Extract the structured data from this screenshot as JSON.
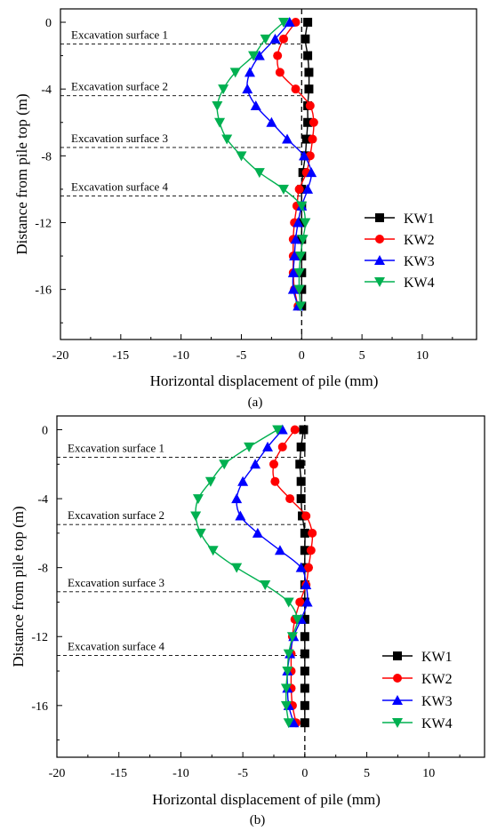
{
  "chart_data": [
    {
      "type": "line",
      "panel_label": "(a)",
      "xlabel": "Horizontal displacement of pile (mm)",
      "ylabel": "Distance from pile top (m)",
      "xlim": [
        -20,
        14.5
      ],
      "ylim": [
        -19,
        0.8
      ],
      "x_ticks": [
        -20,
        -15,
        -10,
        -5,
        0,
        5,
        10
      ],
      "y_ticks": [
        0,
        -4,
        -8,
        -12,
        -16
      ],
      "legend_position": "right",
      "grid": false,
      "excavation_surfaces": [
        {
          "label": "Excavation surface 1",
          "depth": -1.3
        },
        {
          "label": "Excavation surface 2",
          "depth": -4.4
        },
        {
          "label": "Excavation surface 3",
          "depth": -7.5
        },
        {
          "label": "Excavation surface 4",
          "depth": -10.4
        }
      ],
      "series": [
        {
          "name": "KW1",
          "color": "#000000",
          "marker": "square",
          "points": [
            [
              0.5,
              0
            ],
            [
              0.3,
              -1
            ],
            [
              0.5,
              -2
            ],
            [
              0.6,
              -3
            ],
            [
              0.6,
              -4
            ],
            [
              0.5,
              -5
            ],
            [
              0.5,
              -6
            ],
            [
              0.4,
              -7
            ],
            [
              0.3,
              -8
            ],
            [
              0.1,
              -9
            ],
            [
              0.0,
              -10
            ],
            [
              0.0,
              -11
            ],
            [
              0.0,
              -12
            ],
            [
              0.0,
              -13
            ],
            [
              0.0,
              -14
            ],
            [
              0.0,
              -15
            ],
            [
              0.0,
              -16
            ],
            [
              0.0,
              -17
            ]
          ]
        },
        {
          "name": "KW2",
          "color": "#ff0000",
          "marker": "circle",
          "points": [
            [
              -0.5,
              0
            ],
            [
              -1.5,
              -1
            ],
            [
              -2,
              -2
            ],
            [
              -1.8,
              -3
            ],
            [
              -0.5,
              -4
            ],
            [
              0.7,
              -5
            ],
            [
              1.0,
              -6
            ],
            [
              0.9,
              -7
            ],
            [
              0.7,
              -8
            ],
            [
              0.4,
              -9
            ],
            [
              -0.2,
              -10
            ],
            [
              -0.4,
              -11
            ],
            [
              -0.6,
              -12
            ],
            [
              -0.7,
              -13
            ],
            [
              -0.7,
              -14
            ],
            [
              -0.7,
              -15
            ],
            [
              -0.6,
              -16
            ],
            [
              -0.3,
              -17
            ]
          ]
        },
        {
          "name": "KW3",
          "color": "#0000ff",
          "marker": "triangle-up",
          "points": [
            [
              -1,
              0
            ],
            [
              -2.2,
              -1
            ],
            [
              -3.5,
              -2
            ],
            [
              -4.3,
              -3
            ],
            [
              -4.5,
              -4
            ],
            [
              -3.8,
              -5
            ],
            [
              -2.5,
              -6
            ],
            [
              -1.2,
              -7
            ],
            [
              0.2,
              -8
            ],
            [
              0.8,
              -9
            ],
            [
              0.5,
              -10
            ],
            [
              0.0,
              -11
            ],
            [
              -0.3,
              -12
            ],
            [
              -0.5,
              -13
            ],
            [
              -0.6,
              -14
            ],
            [
              -0.7,
              -15
            ],
            [
              -0.7,
              -16
            ],
            [
              -0.3,
              -17
            ]
          ]
        },
        {
          "name": "KW4",
          "color": "#00b050",
          "marker": "triangle-down",
          "points": [
            [
              -1.5,
              0
            ],
            [
              -3,
              -1
            ],
            [
              -4,
              -2
            ],
            [
              -5.5,
              -3
            ],
            [
              -6.5,
              -4
            ],
            [
              -7,
              -5
            ],
            [
              -6.8,
              -6
            ],
            [
              -6.2,
              -7
            ],
            [
              -5,
              -8
            ],
            [
              -3.5,
              -9
            ],
            [
              -1.5,
              -10
            ],
            [
              0,
              -11
            ],
            [
              0.3,
              -12
            ],
            [
              0.1,
              -13
            ],
            [
              -0.1,
              -14
            ],
            [
              -0.2,
              -15
            ],
            [
              -0.2,
              -16
            ],
            [
              -0.1,
              -17
            ]
          ]
        }
      ]
    },
    {
      "type": "line",
      "panel_label": "(b)",
      "xlabel": "Horizontal displacement of pile (mm)",
      "ylabel": "Distance from pile top (m)",
      "xlim": [
        -20,
        14.5
      ],
      "ylim": [
        -19,
        0.8
      ],
      "x_ticks": [
        -20,
        -15,
        -10,
        -5,
        0,
        5,
        10
      ],
      "y_ticks": [
        0,
        -4,
        -8,
        -12,
        -16
      ],
      "legend_position": "bottom-right",
      "grid": false,
      "excavation_surfaces": [
        {
          "label": "Excavation surface 1",
          "depth": -1.6
        },
        {
          "label": "Excavation surface 2",
          "depth": -5.5
        },
        {
          "label": "Excavation surface 3",
          "depth": -9.4
        },
        {
          "label": "Excavation surface 4",
          "depth": -13.1
        }
      ],
      "series": [
        {
          "name": "KW1",
          "color": "#000000",
          "marker": "square",
          "points": [
            [
              -0.1,
              0
            ],
            [
              -0.3,
              -1
            ],
            [
              -0.4,
              -2
            ],
            [
              -0.3,
              -3
            ],
            [
              -0.3,
              -4
            ],
            [
              -0.2,
              -5
            ],
            [
              0,
              -6
            ],
            [
              0,
              -7
            ],
            [
              0,
              -8
            ],
            [
              0,
              -9
            ],
            [
              0,
              -10
            ],
            [
              0,
              -11
            ],
            [
              0,
              -12
            ],
            [
              0,
              -13
            ],
            [
              0,
              -14
            ],
            [
              0,
              -15
            ],
            [
              0,
              -16
            ],
            [
              0,
              -17
            ]
          ]
        },
        {
          "name": "KW2",
          "color": "#ff0000",
          "marker": "circle",
          "points": [
            [
              -0.8,
              0
            ],
            [
              -1.8,
              -1
            ],
            [
              -2.5,
              -2
            ],
            [
              -2.4,
              -3
            ],
            [
              -1.2,
              -4
            ],
            [
              0.1,
              -5
            ],
            [
              0.6,
              -6
            ],
            [
              0.5,
              -7
            ],
            [
              0.3,
              -8
            ],
            [
              0.1,
              -9
            ],
            [
              -0.4,
              -10
            ],
            [
              -0.8,
              -11
            ],
            [
              -1.0,
              -12
            ],
            [
              -1.1,
              -13
            ],
            [
              -1.1,
              -14
            ],
            [
              -1.1,
              -15
            ],
            [
              -1.0,
              -16
            ],
            [
              -0.7,
              -17
            ]
          ]
        },
        {
          "name": "KW3",
          "color": "#0000ff",
          "marker": "triangle-up",
          "points": [
            [
              -1.8,
              0
            ],
            [
              -3.0,
              -1
            ],
            [
              -4.0,
              -2
            ],
            [
              -5.0,
              -3
            ],
            [
              -5.5,
              -4
            ],
            [
              -5.2,
              -5
            ],
            [
              -3.8,
              -6
            ],
            [
              -2.0,
              -7
            ],
            [
              -0.3,
              -8
            ],
            [
              0.1,
              -9
            ],
            [
              0.2,
              -10
            ],
            [
              -0.3,
              -11
            ],
            [
              -0.9,
              -12
            ],
            [
              -1.2,
              -13
            ],
            [
              -1.4,
              -14
            ],
            [
              -1.4,
              -15
            ],
            [
              -1.3,
              -16
            ],
            [
              -0.9,
              -17
            ]
          ]
        },
        {
          "name": "KW4",
          "color": "#00b050",
          "marker": "triangle-down",
          "points": [
            [
              -2.2,
              0
            ],
            [
              -4.5,
              -1
            ],
            [
              -6.5,
              -2
            ],
            [
              -7.6,
              -3
            ],
            [
              -8.6,
              -4
            ],
            [
              -8.8,
              -5
            ],
            [
              -8.4,
              -6
            ],
            [
              -7.4,
              -7
            ],
            [
              -5.5,
              -8
            ],
            [
              -3.2,
              -9
            ],
            [
              -1.3,
              -10
            ],
            [
              -0.6,
              -11
            ],
            [
              -1.0,
              -12
            ],
            [
              -1.3,
              -13
            ],
            [
              -1.4,
              -14
            ],
            [
              -1.5,
              -15
            ],
            [
              -1.5,
              -16
            ],
            [
              -1.3,
              -17
            ]
          ]
        }
      ]
    }
  ]
}
